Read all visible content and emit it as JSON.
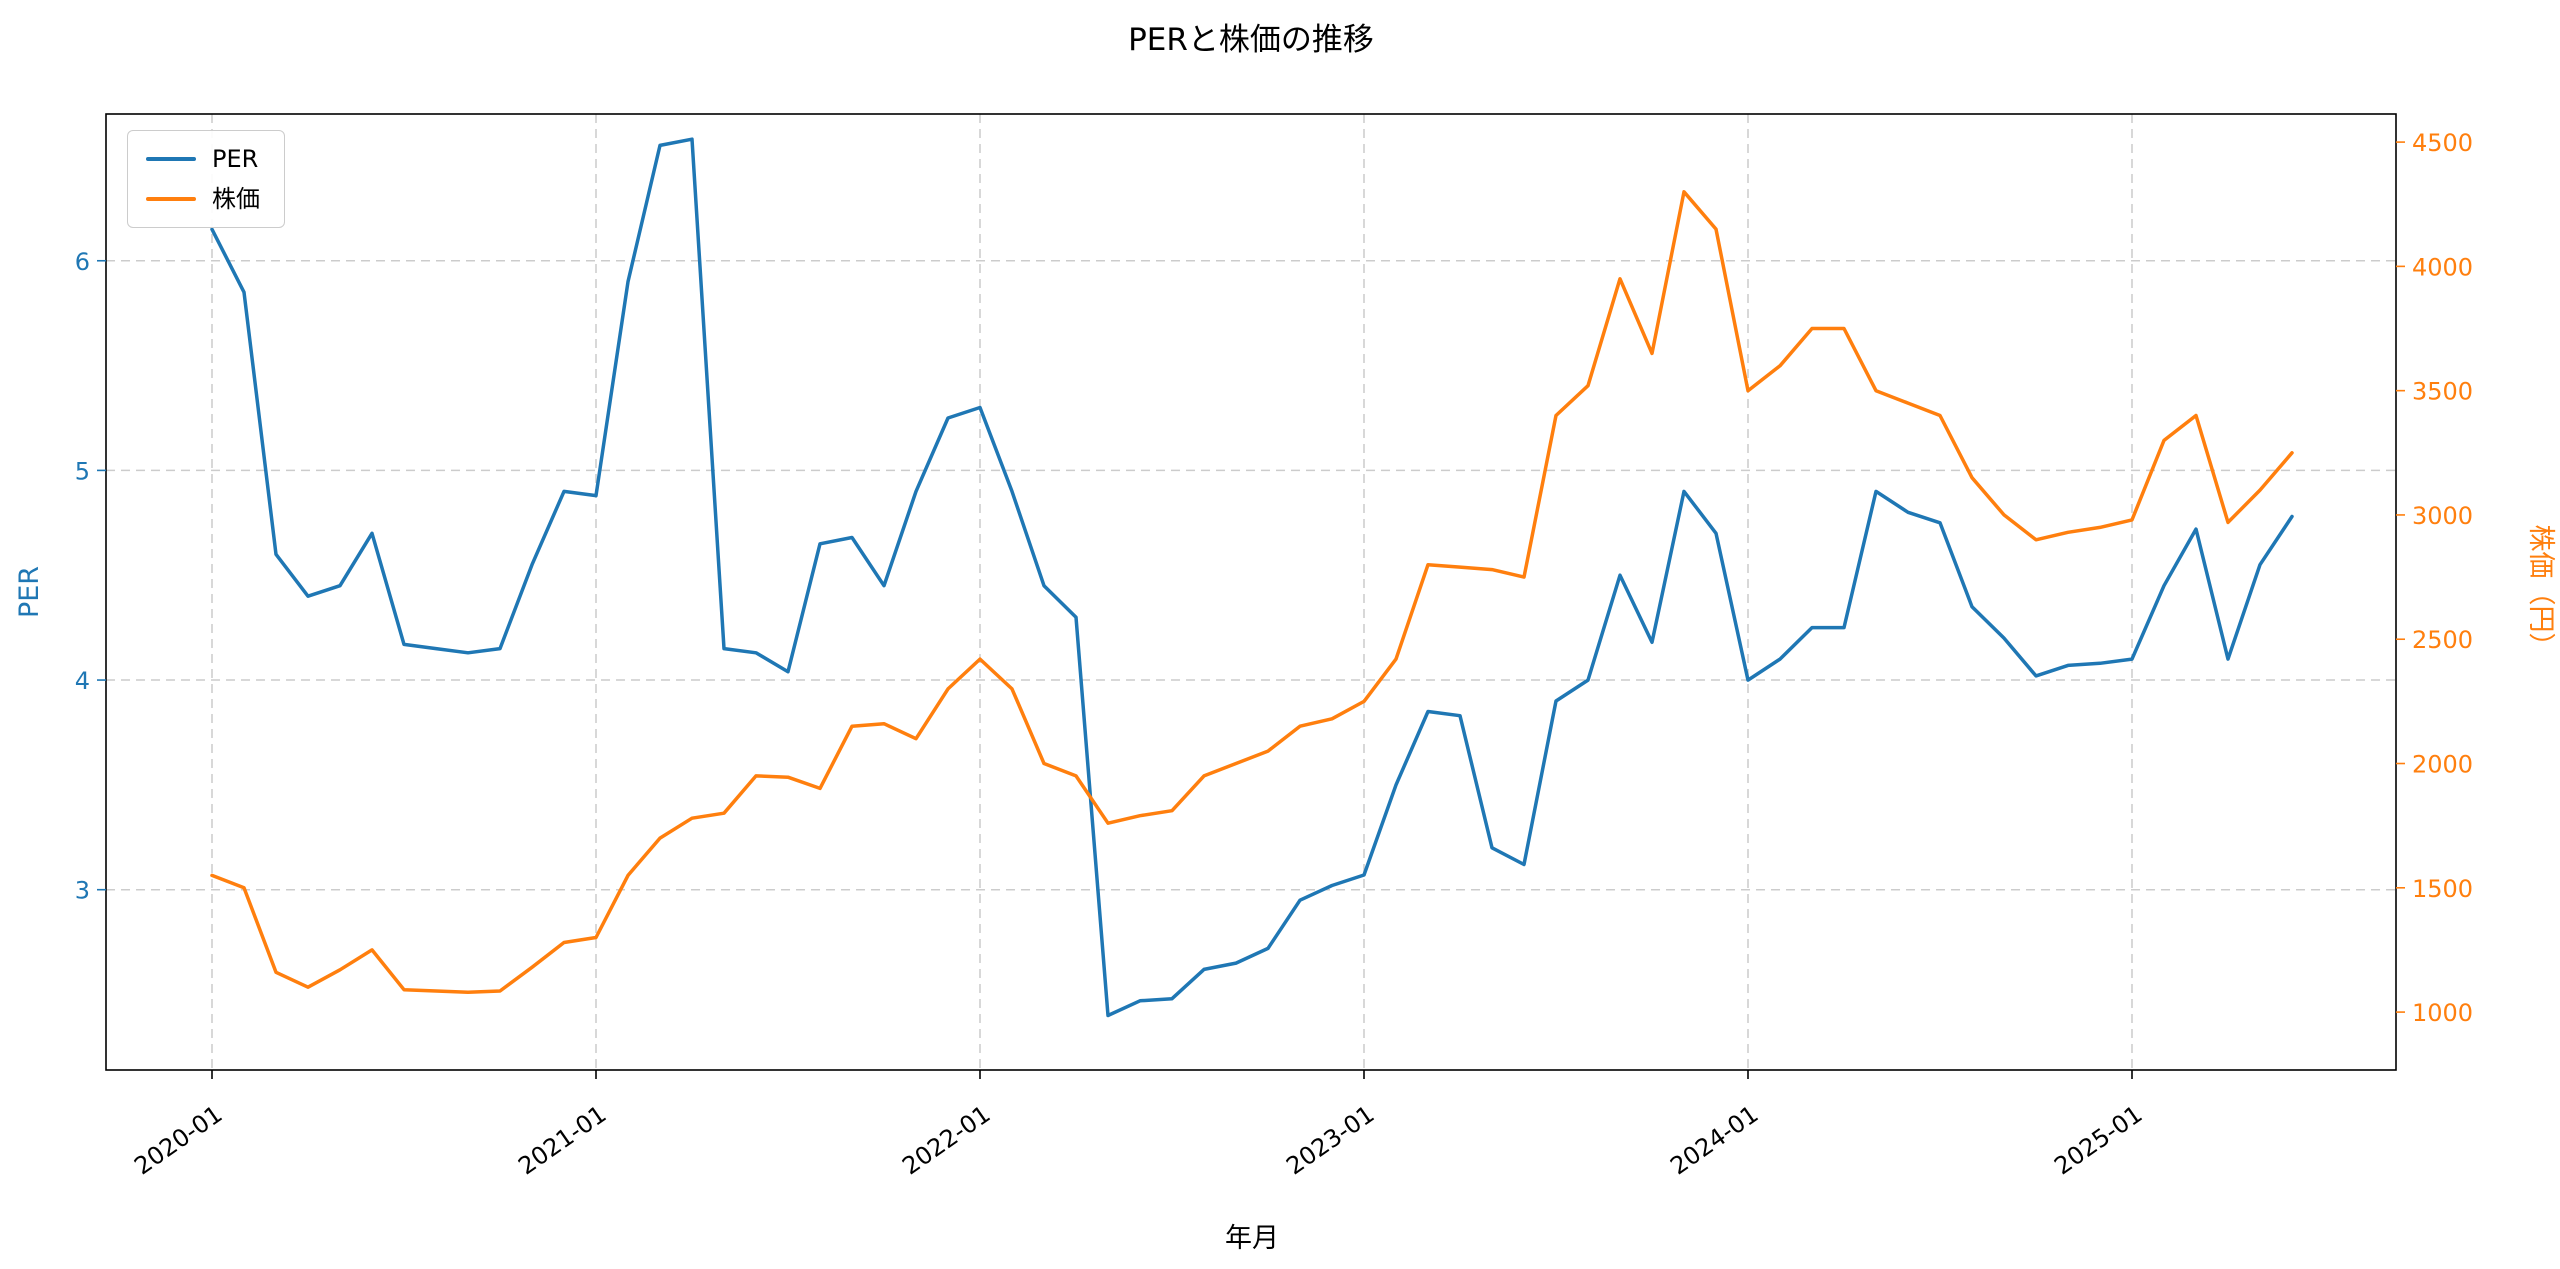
{
  "chart_data": {
    "type": "line",
    "title": "PERと株価の推移",
    "xlabel": "年月",
    "ylabel_left": "PER",
    "ylabel_right": "株価（円）",
    "grid": true,
    "x": [
      "2020-01",
      "2020-02",
      "2020-03",
      "2020-04",
      "2020-05",
      "2020-06",
      "2020-07",
      "2020-08",
      "2020-09",
      "2020-10",
      "2020-11",
      "2020-12",
      "2021-01",
      "2021-02",
      "2021-03",
      "2021-04",
      "2021-05",
      "2021-06",
      "2021-07",
      "2021-08",
      "2021-09",
      "2021-10",
      "2021-11",
      "2021-12",
      "2022-01",
      "2022-02",
      "2022-03",
      "2022-04",
      "2022-05",
      "2022-06",
      "2022-07",
      "2022-08",
      "2022-09",
      "2022-10",
      "2022-11",
      "2022-12",
      "2023-01",
      "2023-02",
      "2023-03",
      "2023-04",
      "2023-05",
      "2023-06",
      "2023-07",
      "2023-08",
      "2023-09",
      "2023-10",
      "2023-11",
      "2023-12",
      "2024-01",
      "2024-02",
      "2024-03",
      "2024-04",
      "2024-05",
      "2024-06",
      "2024-07",
      "2024-08",
      "2024-09",
      "2024-10",
      "2024-11",
      "2024-12",
      "2025-01",
      "2025-02",
      "2025-03",
      "2025-04",
      "2025-05",
      "2025-06"
    ],
    "series": [
      {
        "name": "PER",
        "axis": "left",
        "color": "#1f77b4",
        "values": [
          6.15,
          5.85,
          4.6,
          4.4,
          4.45,
          4.7,
          4.17,
          4.15,
          4.13,
          4.15,
          4.55,
          4.9,
          4.88,
          5.9,
          6.55,
          6.58,
          4.15,
          4.13,
          4.04,
          4.65,
          4.68,
          4.45,
          4.9,
          5.25,
          5.3,
          4.9,
          4.45,
          4.3,
          2.4,
          2.47,
          2.48,
          2.62,
          2.65,
          2.72,
          2.95,
          3.02,
          3.07,
          3.5,
          3.85,
          3.83,
          3.2,
          3.12,
          3.9,
          4.0,
          4.5,
          4.18,
          4.9,
          4.7,
          4.0,
          4.1,
          4.25,
          4.25,
          4.9,
          4.8,
          4.75,
          4.35,
          4.2,
          4.02,
          4.07,
          4.08,
          4.1,
          4.45,
          4.72,
          4.1,
          4.55,
          4.78
        ]
      },
      {
        "name": "株価",
        "axis": "right",
        "color": "#ff7f0e",
        "values": [
          1550,
          1500,
          1160,
          1100,
          1170,
          1250,
          1090,
          1085,
          1080,
          1085,
          1180,
          1280,
          1300,
          1550,
          1700,
          1780,
          1800,
          1950,
          1945,
          1900,
          2150,
          2160,
          2100,
          2300,
          2420,
          2300,
          2000,
          1950,
          1760,
          1790,
          1810,
          1950,
          2000,
          2050,
          2150,
          2180,
          2250,
          2420,
          2800,
          2790,
          2780,
          2750,
          3400,
          3520,
          3950,
          3650,
          4300,
          4150,
          3500,
          3600,
          3750,
          3750,
          3500,
          3450,
          3400,
          3150,
          3000,
          2900,
          2930,
          2950,
          2980,
          3300,
          3400,
          2970,
          3100,
          3250
        ]
      }
    ],
    "xtick_labels": [
      "2020-01",
      "2021-01",
      "2022-01",
      "2023-01",
      "2024-01",
      "2025-01"
    ],
    "yticks_left": [
      3,
      4,
      5,
      6
    ],
    "yticks_right": [
      1000,
      1500,
      2000,
      2500,
      3000,
      3500,
      4000,
      4500
    ],
    "ylim_left": [
      2.14,
      6.7
    ],
    "ylim_right": [
      767,
      4613
    ],
    "legend": {
      "position": "upper-left",
      "entries": [
        "PER",
        "株価"
      ]
    },
    "colors": {
      "grid": "#cccccc",
      "spine": "#000000",
      "background": "#ffffff",
      "tick_text": "#000000"
    }
  }
}
